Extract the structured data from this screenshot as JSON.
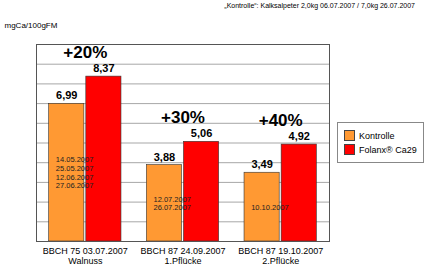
{
  "chart_data": {
    "type": "bar",
    "title": "„Kontrolle“: Kalksalpeter 2,0kg 06.07.2007 / 7,0kg 26.07.2007",
    "ylabel": "mgCa/100gFM",
    "categories": [
      "BBCH 75 03.07.2007\nWalnuss",
      "BBCH 87 24.09.2007\n1.Pflücke",
      "BBCH 87 19.10.2007\n2.Pflücke"
    ],
    "series": [
      {
        "name": "Kontrolle",
        "color": "#ff9933",
        "values": [
          6.99,
          3.88,
          3.49
        ],
        "value_labels": [
          "6,99",
          "3,88",
          "3,49"
        ]
      },
      {
        "name": "Folanx® Ca29",
        "color": "#ff0000",
        "values": [
          8.37,
          5.06,
          4.92
        ],
        "value_labels": [
          "8,37",
          "5,06",
          "4,92"
        ]
      }
    ],
    "ylim": [
      0,
      10
    ],
    "yticks": [
      0,
      1,
      2,
      3,
      4,
      5,
      6,
      7,
      8,
      9,
      10
    ],
    "grid": true,
    "tick_labels": "x",
    "data_labels": true,
    "legend": "right",
    "annotations": [
      {
        "category": 0,
        "text": "+20%"
      },
      {
        "category": 1,
        "text": "+30%"
      },
      {
        "category": 2,
        "text": "+40%"
      }
    ],
    "application_dates": [
      [
        "14.05.2007",
        "25.05.2007",
        "12.06.2007",
        "27.06.2007"
      ],
      [
        "12.07.2007",
        "26.07.2007"
      ],
      [
        "10.10.2007"
      ]
    ]
  }
}
